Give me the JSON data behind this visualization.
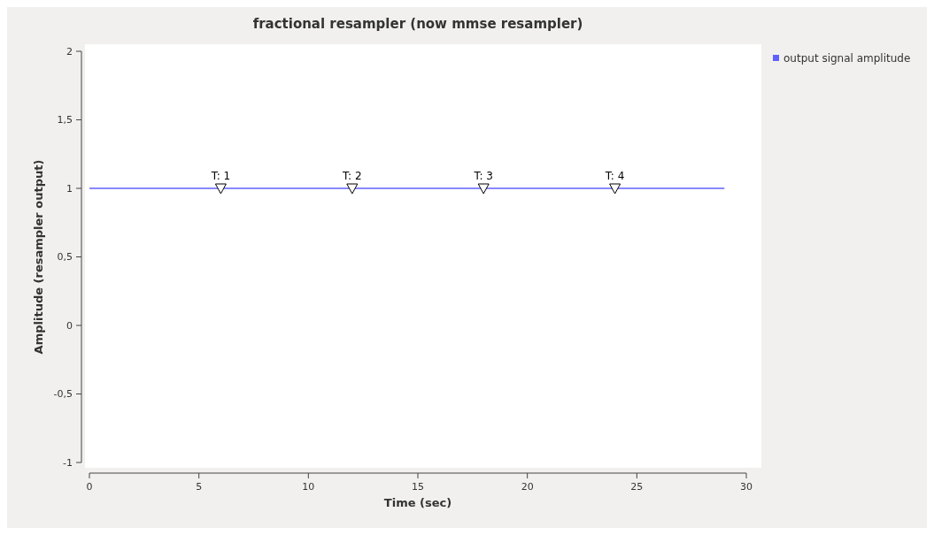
{
  "chart_data": {
    "type": "line",
    "title": "fractional resampler (now mmse resampler)",
    "xlabel": "Time (sec)",
    "ylabel": "Amplitude (resampler output)",
    "x": [
      0,
      29
    ],
    "series": [
      {
        "name": "output signal amplitude",
        "color": "#6060ff",
        "values": [
          1,
          1
        ]
      }
    ],
    "xlim": [
      0,
      30
    ],
    "xticks": [
      0,
      5,
      10,
      15,
      20,
      25,
      30
    ],
    "ylim": [
      -1,
      2
    ],
    "yticks": [
      -1,
      {
        "value": -0.5,
        "label": "-0,5"
      },
      0,
      {
        "value": 0.5,
        "label": "0,5"
      },
      1,
      {
        "value": 1.5,
        "label": "1,5"
      },
      2
    ],
    "annotations": [
      {
        "text": "T: 1",
        "x": 6,
        "y": 1
      },
      {
        "text": "T: 2",
        "x": 12,
        "y": 1
      },
      {
        "text": "T: 3",
        "x": 18,
        "y": 1
      },
      {
        "text": "T: 4",
        "x": 24,
        "y": 1
      }
    ],
    "legend": "top right",
    "grid": false,
    "marker": "none"
  }
}
